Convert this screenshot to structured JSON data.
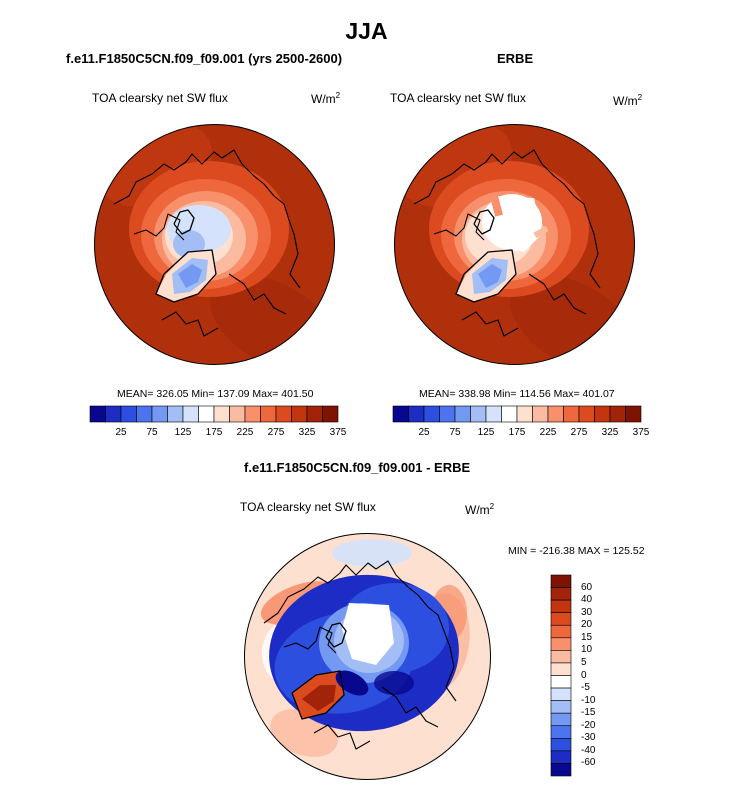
{
  "page": {
    "title": "JJA"
  },
  "panels": [
    {
      "title": "f.e11.F1850C5CN.f09_f09.001 (yrs 2500-2600)",
      "variable": "TOA clearsky net SW flux",
      "units_base": "W/m",
      "units_exp": "2",
      "stats": "MEAN= 326.05  Min= 137.09  Max= 401.50"
    },
    {
      "title": "ERBE",
      "variable": "TOA clearsky net SW flux",
      "units_base": "W/m",
      "units_exp": "2",
      "stats": "MEAN= 338.98  Min= 114.56  Max= 401.07"
    },
    {
      "title": "f.e11.F1850C5CN.f09_f09.001 - ERBE",
      "variable": "TOA clearsky net SW flux",
      "units_base": "W/m",
      "units_exp": "2",
      "stats": "MIN = -216.38 MAX = 125.52"
    }
  ],
  "chart_data": [
    {
      "type": "heatmap",
      "projection": "north-polar-stereographic",
      "title": "f.e11.F1850C5CN.f09_f09.001 (yrs 2500-2600)",
      "variable": "TOA clearsky net SW flux",
      "units": "W/m2",
      "mean": 326.05,
      "min": 137.09,
      "max": 401.5,
      "colorbar": {
        "orientation": "horizontal",
        "tick_labels": [
          "25",
          "75",
          "125",
          "175",
          "225",
          "275",
          "325",
          "375"
        ],
        "levels": [
          25,
          50,
          75,
          100,
          125,
          150,
          175,
          200,
          225,
          250,
          275,
          300,
          325,
          350,
          375
        ],
        "colors": [
          "#08088f",
          "#1d2cc4",
          "#2c4fe0",
          "#4b74ee",
          "#7499f2",
          "#a3bdf5",
          "#d4e2fb",
          "#ffffff",
          "#fde0cf",
          "#fbbba0",
          "#f7906b",
          "#ef673c",
          "#dc4a1f",
          "#c2350f",
          "#a0230a",
          "#7d1303"
        ]
      }
    },
    {
      "type": "heatmap",
      "projection": "north-polar-stereographic",
      "title": "ERBE",
      "variable": "TOA clearsky net SW flux",
      "units": "W/m2",
      "mean": 338.98,
      "min": 114.56,
      "max": 401.07,
      "colorbar": {
        "orientation": "horizontal",
        "tick_labels": [
          "25",
          "75",
          "125",
          "175",
          "225",
          "275",
          "325",
          "375"
        ],
        "levels": [
          25,
          50,
          75,
          100,
          125,
          150,
          175,
          200,
          225,
          250,
          275,
          300,
          325,
          350,
          375
        ],
        "colors": [
          "#08088f",
          "#1d2cc4",
          "#2c4fe0",
          "#4b74ee",
          "#7499f2",
          "#a3bdf5",
          "#d4e2fb",
          "#ffffff",
          "#fde0cf",
          "#fbbba0",
          "#f7906b",
          "#ef673c",
          "#dc4a1f",
          "#c2350f",
          "#a0230a",
          "#7d1303"
        ]
      }
    },
    {
      "type": "heatmap",
      "projection": "north-polar-stereographic",
      "title": "f.e11.F1850C5CN.f09_f09.001 - ERBE",
      "variable": "TOA clearsky net SW flux",
      "units": "W/m2",
      "min": -216.38,
      "max": 125.52,
      "colorbar": {
        "orientation": "vertical",
        "tick_labels": [
          "60",
          "40",
          "30",
          "20",
          "15",
          "10",
          "5",
          "0",
          "-5",
          "-10",
          "-15",
          "-20",
          "-30",
          "-40",
          "-60"
        ],
        "colors": [
          "#7d1303",
          "#a0230a",
          "#c2350f",
          "#dc4a1f",
          "#ef673c",
          "#f7906b",
          "#fbbba0",
          "#fde0cf",
          "#ffffff",
          "#d4e2fb",
          "#a3bdf5",
          "#7499f2",
          "#4b74ee",
          "#2c4fe0",
          "#1d2cc4",
          "#08088f"
        ]
      }
    }
  ]
}
